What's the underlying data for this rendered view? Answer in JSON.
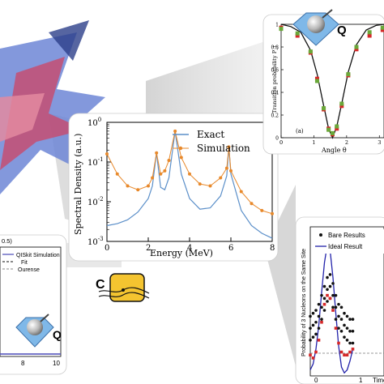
{
  "colors": {
    "exact": "#5b8fc9",
    "simulation": "#e8892b",
    "red_series": "#d62728",
    "green_series": "#6aa839",
    "bare_series": "#111111",
    "ideal_series": "#2222aa",
    "fit_line": "#111111",
    "qiskit_line": "#4a4ab8",
    "ourense_line": "#888888"
  },
  "icons": {
    "top_right_logo": "sphere-diamond-q-logo",
    "bottom_left_logo": "sphere-diamond-q-logo",
    "center_logo": "chip-c-logo"
  },
  "logo_letters": {
    "top_right": "Q",
    "bottom_left": "Q",
    "center": "C"
  },
  "chart_data": [
    {
      "type": "line",
      "xlabel": "Energy (MeV)",
      "ylabel": "Spectral Density (a.u.)",
      "xlim": [
        0,
        8
      ],
      "ylim": [
        0.001,
        1
      ],
      "yscale": "log",
      "xticks": [
        "0",
        "2",
        "4",
        "6",
        "8"
      ],
      "yticks": [
        "10^{-3}",
        "10^{-2}",
        "10^{-1}",
        "10^{0}"
      ],
      "legend_position": "top-right",
      "peaks": [
        2.4,
        3.3,
        5.9
      ],
      "series": [
        {
          "name": "Exact",
          "style": "line",
          "x": [
            0,
            0.5,
            1,
            1.5,
            2,
            2.2,
            2.4,
            2.6,
            2.8,
            3.0,
            3.3,
            3.6,
            4.0,
            4.5,
            5.0,
            5.5,
            5.8,
            5.9,
            6.0,
            6.5,
            7.0,
            7.5,
            8.0
          ],
          "y": [
            0.0025,
            0.0028,
            0.0035,
            0.0055,
            0.012,
            0.025,
            0.17,
            0.023,
            0.02,
            0.04,
            0.6,
            0.05,
            0.012,
            0.0065,
            0.007,
            0.014,
            0.045,
            0.24,
            0.05,
            0.006,
            0.0025,
            0.0016,
            0.0012
          ]
        },
        {
          "name": "Simulation",
          "style": "line-markers",
          "x": [
            0,
            0.5,
            1,
            1.5,
            2,
            2.2,
            2.4,
            2.6,
            2.8,
            3.0,
            3.3,
            3.6,
            4.0,
            4.5,
            5.0,
            5.5,
            5.8,
            5.9,
            6.0,
            6.5,
            7.0,
            7.5,
            8.0
          ],
          "y": [
            0.16,
            0.05,
            0.025,
            0.02,
            0.025,
            0.04,
            0.17,
            0.05,
            0.06,
            0.11,
            0.6,
            0.13,
            0.05,
            0.028,
            0.025,
            0.04,
            0.07,
            0.24,
            0.06,
            0.018,
            0.009,
            0.006,
            0.005
          ]
        }
      ]
    },
    {
      "type": "scatter",
      "xlabel": "Angle θ",
      "ylabel": "Transition probability P_t",
      "panel_label": "(a)",
      "xlim": [
        0,
        3.1416
      ],
      "ylim": [
        0,
        1
      ],
      "xticks": [
        "0",
        "1",
        "2",
        "3"
      ],
      "yticks": [
        "0",
        "0.2",
        "0.4",
        "0.6",
        "0.8",
        "1"
      ],
      "series": [
        {
          "name": "",
          "style": "line",
          "x": [
            0.0,
            0.3,
            0.6,
            0.9,
            1.1,
            1.3,
            1.45,
            1.57,
            1.7,
            1.85,
            2.05,
            2.3,
            2.6,
            2.9,
            3.14
          ],
          "y": [
            1.0,
            0.98,
            0.93,
            0.77,
            0.56,
            0.28,
            0.08,
            0.0,
            0.1,
            0.3,
            0.58,
            0.82,
            0.95,
            0.99,
            1.0
          ]
        },
        {
          "name": "",
          "style": "markers",
          "x": [
            0.0,
            0.5,
            0.9,
            1.1,
            1.3,
            1.45,
            1.57,
            1.7,
            1.85,
            2.05,
            2.3,
            2.7,
            3.1
          ],
          "y": [
            0.97,
            0.9,
            0.75,
            0.52,
            0.25,
            0.08,
            0.03,
            0.08,
            0.28,
            0.55,
            0.78,
            0.9,
            0.95
          ]
        },
        {
          "name": "",
          "style": "markers",
          "x": [
            0.0,
            0.5,
            0.9,
            1.1,
            1.3,
            1.45,
            1.57,
            1.7,
            1.85,
            2.05,
            2.3,
            2.7,
            3.1
          ],
          "y": [
            0.96,
            0.92,
            0.76,
            0.5,
            0.26,
            0.07,
            0.04,
            0.1,
            0.3,
            0.56,
            0.8,
            0.93,
            0.97
          ]
        }
      ]
    },
    {
      "type": "line",
      "xlabel": "Time",
      "ylabel": "Probability of 3 Nucleons on the Same Site",
      "xticks": [
        "0",
        "1"
      ],
      "xlim": [
        0,
        1.3
      ],
      "ylim": [
        0,
        0.5
      ],
      "legend_position": "top",
      "series": [
        {
          "name": "Bare Results",
          "style": "markers",
          "x": [
            0.0,
            0.05,
            0.1,
            0.15,
            0.2,
            0.25,
            0.3,
            0.35,
            0.4,
            0.45,
            0.5,
            0.55,
            0.6,
            0.65,
            0.7,
            0.75
          ],
          "y": [
            0.16,
            0.17,
            0.18,
            0.2,
            0.23,
            0.26,
            0.29,
            0.3,
            0.27,
            0.23,
            0.2,
            0.19,
            0.17,
            0.16,
            0.15,
            0.15
          ]
        },
        {
          "name": "Ideal Result",
          "style": "line",
          "x": [
            0.0,
            0.05,
            0.1,
            0.15,
            0.2,
            0.25,
            0.3,
            0.35,
            0.4,
            0.45,
            0.5,
            0.55,
            0.6,
            0.65,
            0.7,
            0.75
          ],
          "y": [
            0.02,
            0.04,
            0.09,
            0.17,
            0.28,
            0.38,
            0.44,
            0.42,
            0.33,
            0.21,
            0.1,
            0.03,
            0.01,
            0.02,
            0.05,
            0.09
          ]
        },
        {
          "name": "",
          "style": "markers",
          "x": [
            0.0,
            0.05,
            0.1,
            0.15,
            0.2,
            0.25,
            0.3,
            0.35,
            0.4,
            0.45,
            0.5,
            0.55,
            0.6,
            0.65,
            0.7,
            0.75
          ],
          "y": [
            0.07,
            0.06,
            0.08,
            0.12,
            0.18,
            0.24,
            0.27,
            0.26,
            0.22,
            0.16,
            0.11,
            0.08,
            0.07,
            0.07,
            0.08,
            0.09
          ]
        }
      ]
    },
    {
      "type": "line",
      "panel_label": "0.5)",
      "xticks": [
        "8",
        "10"
      ],
      "legend_position": "top-left",
      "series": [
        {
          "name": "QISkit Simulation",
          "style": "line"
        },
        {
          "name": "Fit",
          "style": "dashed"
        },
        {
          "name": "Ourense",
          "style": "dashed"
        }
      ]
    }
  ]
}
